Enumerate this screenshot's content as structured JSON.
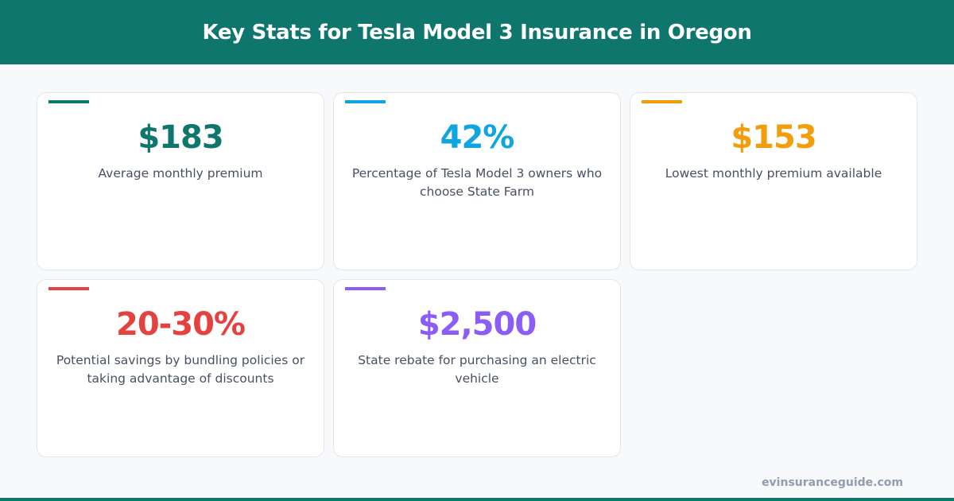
{
  "title": "Key Stats for Tesla Model 3 Insurance in Oregon",
  "stats": [
    {
      "value": "$183",
      "label": "Average monthly premium",
      "color": "#0f766e"
    },
    {
      "value": "42%",
      "label": "Percentage of Tesla Model 3 owners who choose State Farm",
      "color": "#0ea5e0"
    },
    {
      "value": "$153",
      "label": "Lowest monthly premium available",
      "color": "#f29e0b"
    },
    {
      "value": "20-30%",
      "label": "Potential savings by bundling policies or taking advantage of discounts",
      "color": "#e5413f"
    },
    {
      "value": "$2,500",
      "label": "State rebate for purchasing an electric vehicle",
      "color": "#8b5cf6"
    }
  ],
  "footer": "evinsuranceguide.com"
}
